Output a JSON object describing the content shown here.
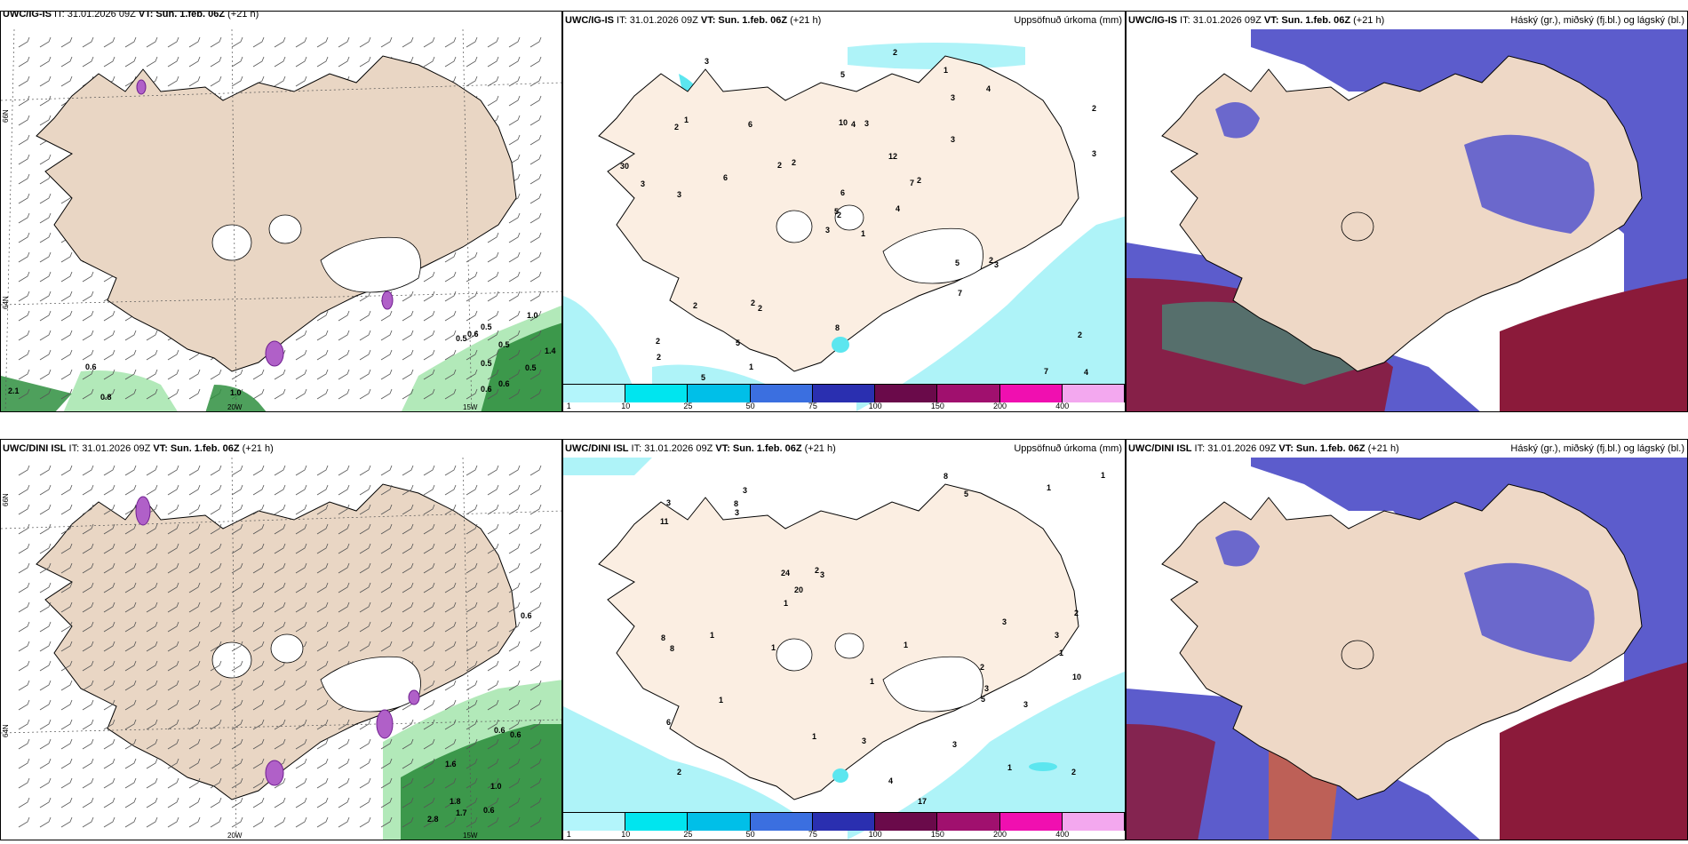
{
  "panels": {
    "top_left": {
      "title_model": "UWC/IG-IS",
      "title_rest": " IT: 31.01.2026 09Z ",
      "vt": "VT: Sun. 1.feb. 06Z",
      "lead": " (+21 h)"
    },
    "top_mid": {
      "title_model": "UWC/IG-IS",
      "title_rest": " IT: 31.01.2026 09Z ",
      "vt": "VT: Sun. 1.feb. 06Z",
      "lead": " (+21 h)",
      "right_label": "Uppsöfnuð úrkoma (mm)"
    },
    "top_right": {
      "title_model": "UWC/IG-IS",
      "title_rest": " IT: 31.01.2026 09Z ",
      "vt": "VT: Sun. 1.feb. 06Z",
      "lead": " (+21 h)",
      "right_label": "Háský (gr.), miðský (fj.bl.) og lágský (bl.)"
    },
    "bot_left": {
      "title_model": "UWC/DINI ISL",
      "title_rest": " IT: 31.01.2026 09Z ",
      "vt": "VT: Sun. 1.feb. 06Z",
      "lead": " (+21 h)"
    },
    "bot_mid": {
      "title_model": "UWC/DINI ISL",
      "title_rest": " IT: 31.01.2026 09Z ",
      "vt": "VT: Sun. 1.feb. 06Z",
      "lead": " (+21 h)",
      "right_label": "Uppsöfnuð úrkoma (mm)"
    },
    "bot_right": {
      "title_model": "UWC/DINI ISL",
      "title_rest": " IT: 31.01.2026 09Z ",
      "vt": "VT: Sun. 1.feb. 06Z",
      "lead": " (+21 h)",
      "right_label": "Háský (gr.), miðský (fj.bl.) og lágský (bl.)"
    }
  },
  "axes": {
    "lon_20w": "20W",
    "lon_15w": "15W",
    "lat_66n": "66N",
    "lat_64n": "64N"
  },
  "colorbar": {
    "levels": [
      "1",
      "10",
      "25",
      "50",
      "75",
      "100",
      "150",
      "200",
      "400"
    ],
    "colors": [
      "#b3f5fb",
      "#00e5ef",
      "#00bfe8",
      "#3b6fe0",
      "#2a2fb0",
      "#6a0a4a",
      "#a0106e",
      "#f00fb0",
      "#f3a8ef"
    ]
  },
  "colors": {
    "land": "#f2d9c7",
    "land_mid": "#fbeee2",
    "precip_light": "#aef3f8",
    "precip_green": "#2f8f3f",
    "cloud_low": "#3d3db8",
    "cloud_mid": "#8b1a3a"
  },
  "precip_labels_top": [
    "1",
    "2",
    "2",
    "2",
    "7",
    "2",
    "1",
    "3",
    "3",
    "4",
    "3",
    "4",
    "3",
    "2",
    "3",
    "3",
    "5",
    "10",
    "12",
    "2",
    "2",
    "2",
    "5",
    "4",
    "2",
    "3",
    "1",
    "5",
    "3",
    "5",
    "3",
    "5",
    "8",
    "6",
    "6",
    "4",
    "2",
    "7",
    "2",
    "2",
    "2",
    "2",
    "6",
    "7",
    "1",
    "30"
  ],
  "precip_labels_bot": [
    "2",
    "1",
    "2",
    "3",
    "3",
    "1",
    "6",
    "5",
    "24",
    "17",
    "11",
    "8",
    "3",
    "2",
    "1",
    "2",
    "1",
    "1",
    "2",
    "1",
    "1",
    "1",
    "1",
    "10",
    "8",
    "8",
    "3",
    "8",
    "3",
    "3",
    "4",
    "3",
    "20",
    "1",
    "3",
    "3",
    "5",
    "1",
    "3"
  ],
  "wind_labels_top": [
    "0.6",
    "0.8",
    "1.0",
    "0.5",
    "0.6",
    "0.5",
    "0.5",
    "0.5",
    "1.4",
    "0.5",
    "0.6",
    "0.6",
    "1.0",
    "2.1"
  ],
  "wind_labels_bot": [
    "0.6",
    "0.6",
    "1.6",
    "1.0",
    "1.8",
    "1.7",
    "2.8",
    "0.6",
    "0.6"
  ]
}
